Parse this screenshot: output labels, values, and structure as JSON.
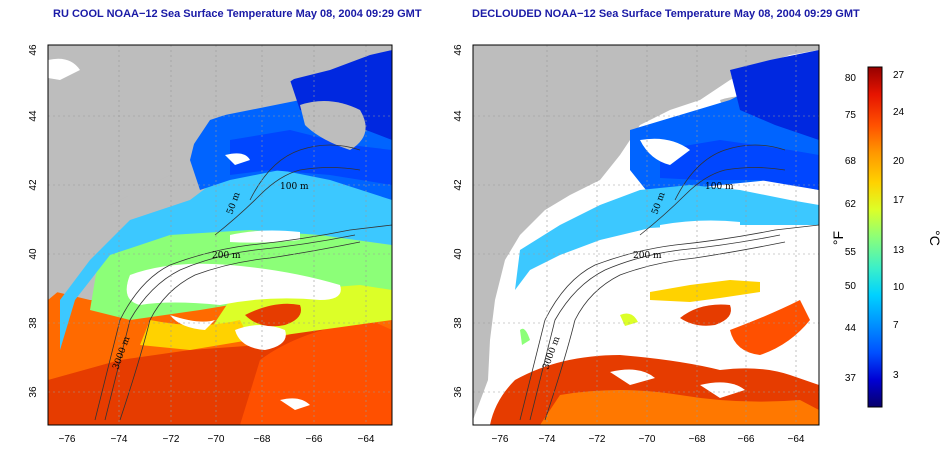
{
  "panels": [
    {
      "title": "RU COOL NOAA−12 Sea Surface Temperature May 08, 2004 09:29 GMT"
    },
    {
      "title": "DECLOUDED NOAA−12 Sea Surface Temperature May 08, 2004 09:29 GMT"
    }
  ],
  "map": {
    "lon_ticks": [
      "−76",
      "−74",
      "−72",
      "−70",
      "−68",
      "−66",
      "−64"
    ],
    "lat_ticks": [
      "46",
      "44",
      "42",
      "40",
      "38",
      "36"
    ],
    "contours": [
      "200 m",
      "100 m",
      "50 m",
      "3000 m"
    ],
    "colors": {
      "land": "#bdbdbd",
      "cloud": "#ffffff"
    }
  },
  "colorbar": {
    "f_label": "°F",
    "c_label": "°C",
    "f_ticks": [
      "80",
      "75",
      "68",
      "62",
      "55",
      "50",
      "44",
      "37"
    ],
    "c_ticks": [
      "27",
      "24",
      "20",
      "17",
      "13",
      "10",
      "7",
      "3"
    ],
    "stops": [
      "#08006b",
      "#0000d4",
      "#0050ff",
      "#0096ff",
      "#00d2ff",
      "#3cf0c8",
      "#8cff78",
      "#dcff28",
      "#ffd200",
      "#ff9600",
      "#ff5000",
      "#e61400",
      "#960000"
    ]
  }
}
